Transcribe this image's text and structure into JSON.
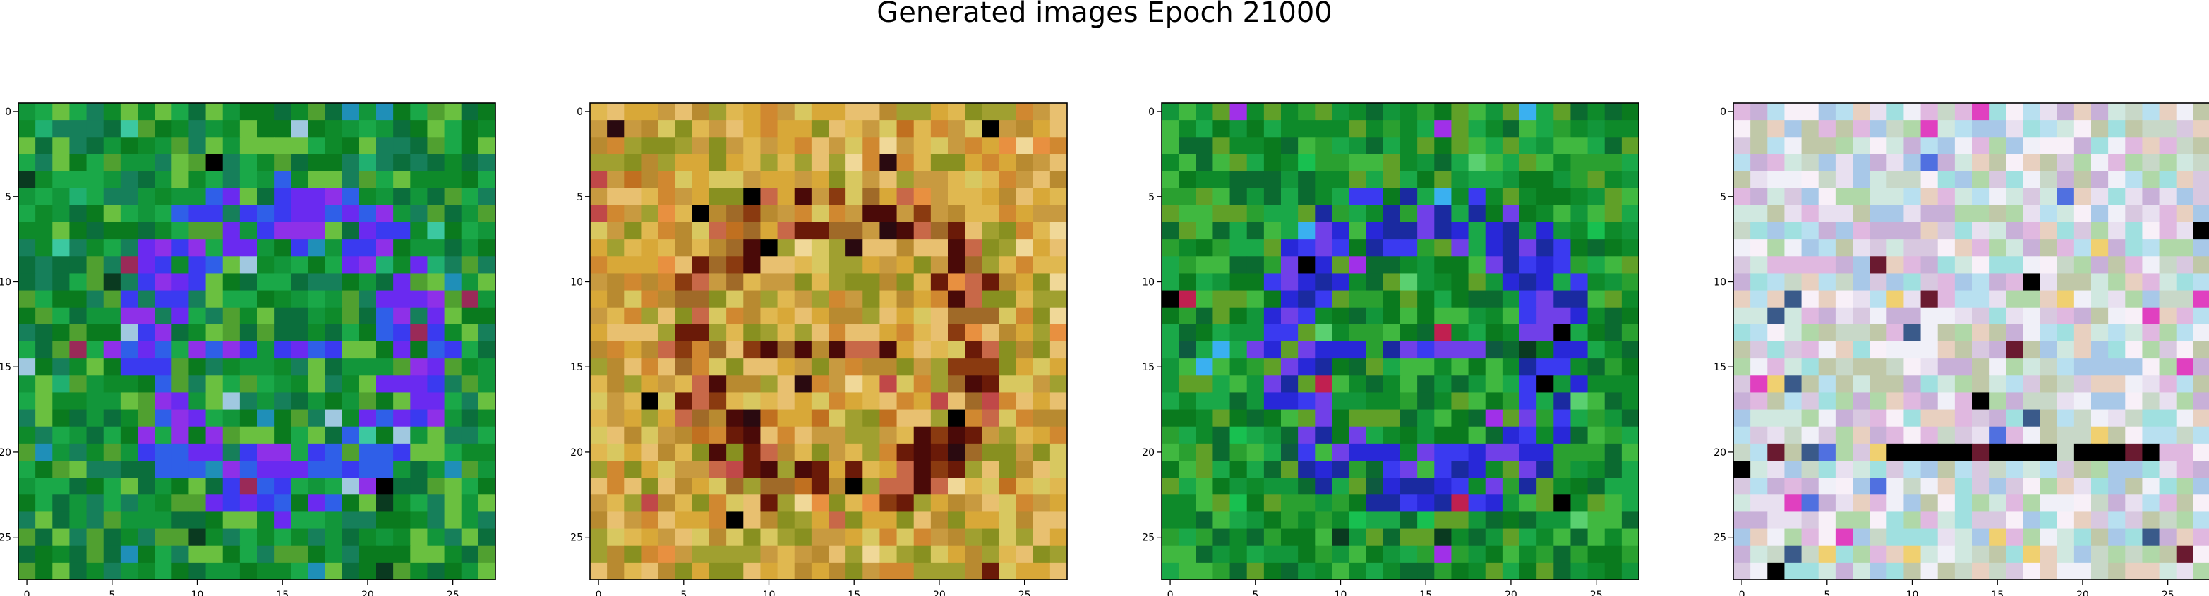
{
  "figure": {
    "title": "Generated images Epoch 21000"
  },
  "chart_data": [
    {
      "type": "heatmap",
      "title": "",
      "xlabel": "",
      "ylabel": "",
      "grid_size": [
        28,
        28
      ],
      "xlim": [
        -0.5,
        27.5
      ],
      "ylim": [
        27.5,
        -0.5
      ],
      "xticks": [
        0,
        5,
        10,
        15,
        20,
        25
      ],
      "yticks": [
        0,
        5,
        10,
        15,
        20,
        25
      ],
      "palette": [
        "#0a7a1e",
        "#0e8a2a",
        "#12963a",
        "#1aa848",
        "#0b6e3c",
        "#167f5a",
        "#20b070",
        "#3cc8a0",
        "#1f8fb8",
        "#2f5fe8",
        "#3a3af0",
        "#6a2af0",
        "#8e30e8",
        "#b040f0",
        "#9a2a58",
        "#50a030",
        "#6ac040",
        "#0a3a20",
        "#000000",
        "#a0c8e0"
      ],
      "base_colors": [
        0,
        1,
        2,
        3,
        4,
        5,
        15,
        16
      ],
      "features": [
        {
          "kind": "ring",
          "colors": [
            9,
            10,
            11,
            12
          ],
          "center": [
            14,
            15
          ],
          "radius": [
            10,
            6
          ]
        },
        {
          "kind": "spots",
          "colors": [
            6,
            7,
            8,
            19
          ],
          "count": 28
        },
        {
          "kind": "spots",
          "colors": [
            17,
            18,
            14
          ],
          "count": 12
        }
      ],
      "seed": 101
    },
    {
      "type": "heatmap",
      "title": "",
      "xlabel": "",
      "ylabel": "",
      "grid_size": [
        28,
        28
      ],
      "xlim": [
        -0.5,
        27.5
      ],
      "ylim": [
        27.5,
        -0.5
      ],
      "xticks": [
        0,
        5,
        10,
        15,
        20,
        25
      ],
      "yticks": [
        0,
        5,
        10,
        15,
        20,
        25
      ],
      "palette": [
        "#c89a40",
        "#d8a838",
        "#e0b850",
        "#b88a30",
        "#c07020",
        "#d08830",
        "#a06a28",
        "#e8c070",
        "#f0d898",
        "#c86848",
        "#8a3a10",
        "#6a1a08",
        "#4a0a08",
        "#2a0a10",
        "#000000",
        "#a0a030",
        "#889020",
        "#c04848",
        "#e89040",
        "#d8c860"
      ],
      "base_colors": [
        0,
        1,
        2,
        3,
        5,
        7,
        15,
        16,
        19
      ],
      "features": [
        {
          "kind": "ring",
          "colors": [
            9,
            10,
            11,
            12,
            6
          ],
          "center": [
            14,
            14
          ],
          "radius": [
            10,
            7
          ]
        },
        {
          "kind": "spots",
          "colors": [
            13,
            14,
            11
          ],
          "count": 22
        },
        {
          "kind": "spots",
          "colors": [
            8,
            17,
            18,
            4
          ],
          "count": 40
        }
      ],
      "seed": 202
    },
    {
      "type": "heatmap",
      "title": "",
      "xlabel": "",
      "ylabel": "",
      "grid_size": [
        28,
        28
      ],
      "xlim": [
        -0.5,
        27.5
      ],
      "ylim": [
        27.5,
        -0.5
      ],
      "xticks": [
        0,
        5,
        10,
        15,
        20,
        25
      ],
      "yticks": [
        0,
        5,
        10,
        15,
        20,
        25
      ],
      "palette": [
        "#0a7a1e",
        "#0e8a2a",
        "#12963a",
        "#1aa848",
        "#0b6a30",
        "#2aa030",
        "#40b840",
        "#18c050",
        "#3ab0f0",
        "#1a2aa0",
        "#2828d8",
        "#3a3af0",
        "#7040e8",
        "#a030e8",
        "#c02050",
        "#000000",
        "#0a3a20",
        "#5ad070",
        "#60a028",
        "#0e5a40"
      ],
      "base_colors": [
        0,
        1,
        2,
        3,
        4,
        5,
        6,
        18
      ],
      "features": [
        {
          "kind": "ring",
          "colors": [
            9,
            10,
            11,
            12
          ],
          "center": [
            14,
            15
          ],
          "radius": [
            10,
            6
          ]
        },
        {
          "kind": "spots",
          "colors": [
            7,
            8,
            17,
            13
          ],
          "count": 22
        },
        {
          "kind": "spots",
          "colors": [
            15,
            16,
            14,
            19
          ],
          "count": 16
        }
      ],
      "seed": 303
    },
    {
      "type": "heatmap",
      "title": "",
      "xlabel": "",
      "ylabel": "",
      "grid_size": [
        28,
        28
      ],
      "xlim": [
        -0.5,
        27.5
      ],
      "ylim": [
        27.5,
        -0.5
      ],
      "xticks": [
        0,
        5,
        10,
        15,
        20,
        25
      ],
      "yticks": [
        0,
        5,
        10,
        15,
        20,
        25
      ],
      "palette": [
        "#e8e0f0",
        "#f0f0f8",
        "#d0e8e0",
        "#c8d8c8",
        "#d8c8e0",
        "#e0b8e0",
        "#b8e0f0",
        "#c0c8a8",
        "#f8f0f8",
        "#a8c8e8",
        "#e8d0c0",
        "#a0e0e0",
        "#c8b0d8",
        "#b0d8a8",
        "#5070e0",
        "#e040c0",
        "#f0d070",
        "#3a5a8a",
        "#000000",
        "#6a1a30"
      ],
      "base_colors": [
        0,
        1,
        2,
        3,
        4,
        5,
        6,
        7,
        8,
        9,
        10,
        11,
        12,
        13
      ],
      "features": [
        {
          "kind": "bar",
          "colors": [
            18,
            19
          ],
          "row": 20,
          "from": 4,
          "to": 24
        },
        {
          "kind": "spots",
          "colors": [
            14,
            15,
            16,
            17
          ],
          "count": 34
        },
        {
          "kind": "spots",
          "colors": [
            18,
            19
          ],
          "count": 10
        }
      ],
      "seed": 404
    }
  ]
}
